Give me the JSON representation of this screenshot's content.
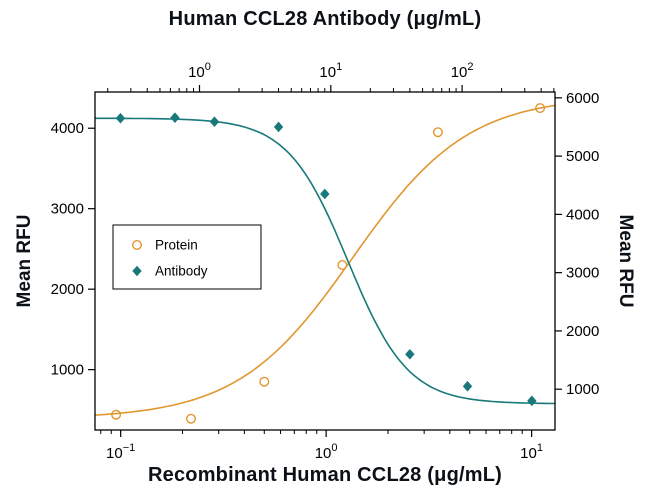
{
  "chart_data": {
    "type": "line",
    "title_top": "Human CCL28 Antibody (μg/mL)",
    "xlabel_bottom": "Recombinant Human CCL28 (μg/mL)",
    "ylabel_left": "Mean RFU",
    "ylabel_right": "Mean RFU",
    "grid": false,
    "legend_position": "center-left-inside",
    "axes": {
      "bottom": {
        "scale": "log",
        "min": 0.075,
        "max": 13,
        "tick_exponents": [
          -1,
          0,
          1
        ]
      },
      "top": {
        "scale": "log",
        "min": 0.16,
        "max": 510,
        "tick_exponents": [
          0,
          1,
          2
        ]
      },
      "left": {
        "scale": "linear",
        "min": 250,
        "max": 4450,
        "ticks": [
          1000,
          2000,
          3000,
          4000
        ]
      },
      "right": {
        "scale": "linear",
        "min": 300,
        "max": 6100,
        "ticks": [
          1000,
          2000,
          3000,
          4000,
          5000,
          6000
        ]
      }
    },
    "series": [
      {
        "name": "Protein",
        "color": "#E1972F",
        "marker": "circle-open",
        "x_axis": "bottom",
        "y_axis": "left",
        "x": [
          0.095,
          0.22,
          0.5,
          1.2,
          3.5,
          11
        ],
        "y": [
          440,
          390,
          850,
          2300,
          3950,
          4250
        ],
        "fit": {
          "bottom": 390,
          "top": 4400,
          "mid": 1.35,
          "hill": 1.55,
          "decreasing": false
        }
      },
      {
        "name": "Antibody",
        "color": "#19797A",
        "marker": "diamond",
        "x_axis": "top",
        "y_axis": "right",
        "x": [
          0.25,
          0.65,
          1.3,
          4,
          9,
          40,
          110,
          340
        ],
        "y": [
          5650,
          5660,
          5590,
          5500,
          4350,
          1600,
          1050,
          800
        ],
        "fit": {
          "bottom": 750,
          "top": 5650,
          "mid": 13.5,
          "hill": 1.9,
          "decreasing": true
        }
      }
    ],
    "legend": {
      "items": [
        {
          "label": "Protein"
        },
        {
          "label": "Antibody"
        }
      ]
    }
  }
}
